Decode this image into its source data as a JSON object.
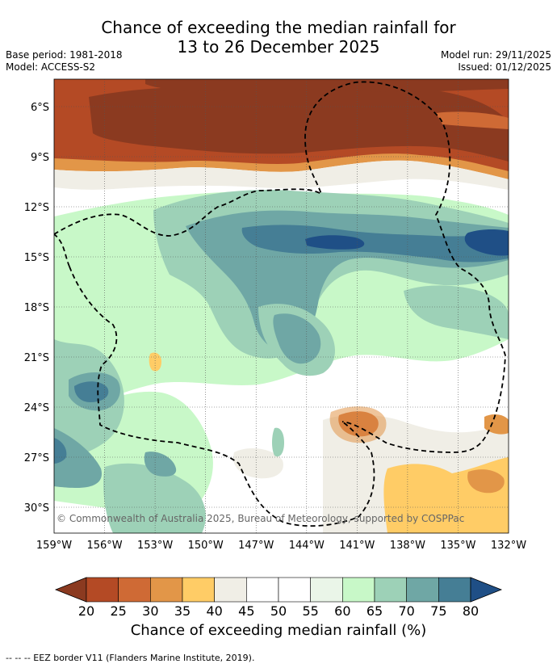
{
  "title_line1": "Chance of exceeding the median rainfall for",
  "title_line2": "13 to 26 December 2025",
  "base_period": "Base period: 1981-2018",
  "model": "Model: ACCESS-S2",
  "model_run": "Model run: 29/11/2025",
  "issued": "Issued: 01/12/2025",
  "copyright": "© Commonwealth of Australia 2025, Bureau of Meteorology, supported by COSPPac",
  "colorbar_title": "Chance of exceeding median rainfall (%)",
  "footer": "--  --  -- EEZ border V11 (Flanders Marine Institute, 2019).",
  "map": {
    "lon_labels": [
      "159°W",
      "156°W",
      "153°W",
      "150°W",
      "147°W",
      "144°W",
      "141°W",
      "138°W",
      "135°W",
      "132°W"
    ],
    "lat_labels": [
      "6°S",
      "9°S",
      "12°S",
      "15°S",
      "18°S",
      "21°S",
      "24°S",
      "27°S",
      "30°S"
    ]
  },
  "colorbar": {
    "labels": [
      "20",
      "25",
      "30",
      "35",
      "40",
      "45",
      "50",
      "55",
      "60",
      "65",
      "70",
      "75",
      "80"
    ],
    "colors": [
      "#8b3a20",
      "#b44a25",
      "#cf6a35",
      "#e29648",
      "#ffcc66",
      "#f0eee6",
      "#ffffff",
      "#ffffff",
      "#eaf5e8",
      "#c8f8c8",
      "#9dd1b7",
      "#6fa7a5",
      "#457e95",
      "#1f4f86"
    ]
  },
  "colors": {
    "dry_dark": "#8b3a20",
    "dry_mid": "#b44a25",
    "dry_light": "#e29648",
    "neutral": "#f0eee6",
    "wet_light": "#c8f8c8",
    "wet_mid": "#9dd1b7",
    "wet_dark": "#457e95",
    "wet_darkest": "#1f4f86"
  }
}
